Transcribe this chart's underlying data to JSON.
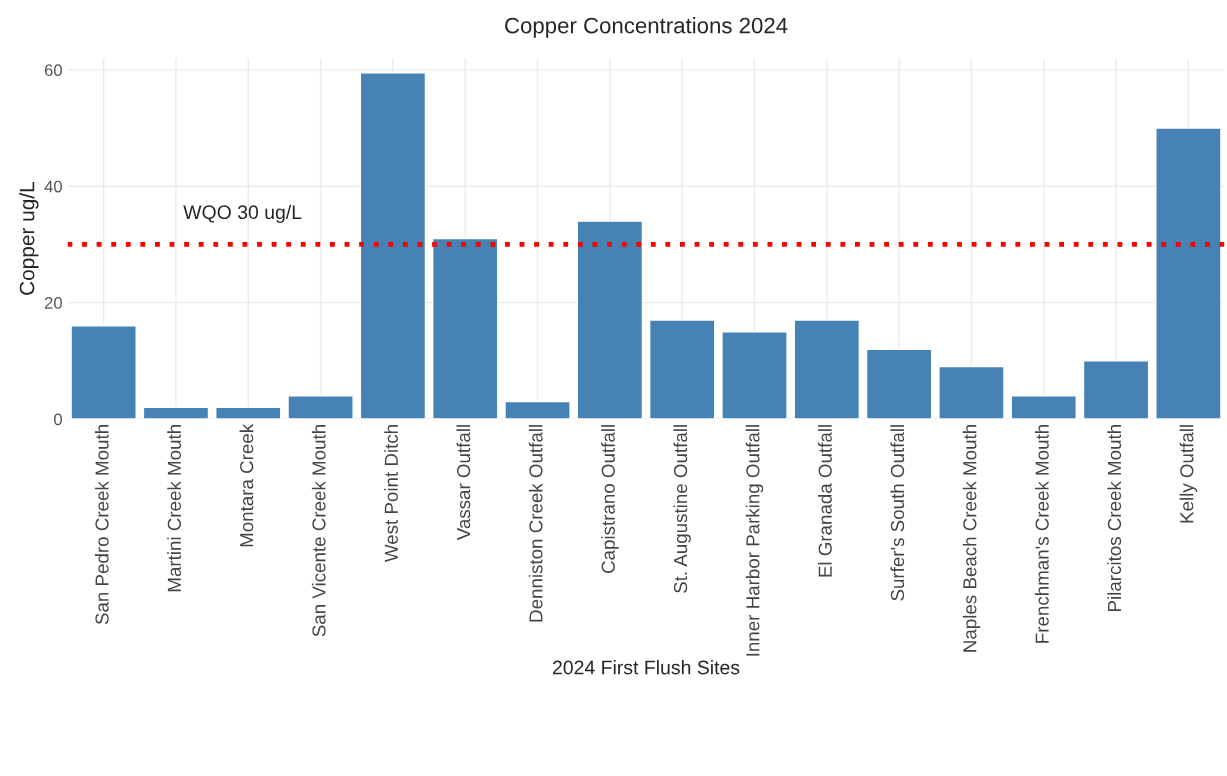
{
  "chart_data": {
    "type": "bar",
    "title": "Copper Concentrations 2024",
    "xlabel": "2024 First Flush Sites",
    "ylabel": "Copper ug/L",
    "categories": [
      "San Pedro Creek Mouth",
      "Martini Creek Mouth",
      "Montara Creek",
      "San Vicente Creek Mouth",
      "West Point Ditch",
      "Vassar Outfall",
      "Denniston Creek Outfall",
      "Capistrano Outfall",
      "St. Augustine Outfall",
      "Inner Harbor Parking Outfall",
      "El Granada Outfall",
      "Surfer's South Outfall",
      "Naples Beach Creek Mouth",
      "Frenchman's Creek Mouth",
      "Pilarcitos Creek Mouth",
      "Kelly Outfall"
    ],
    "values": [
      16,
      2,
      2,
      4,
      59.5,
      31,
      3,
      34,
      17,
      15,
      17,
      12,
      9,
      4,
      10,
      50
    ],
    "color": "#4682b4",
    "ylim": [
      0,
      62
    ],
    "yticks": [
      0,
      20,
      40,
      60
    ],
    "grid": true,
    "ref_lines": [
      {
        "axis": "y",
        "value": 30,
        "label": "WQO 30 ug/L",
        "color": "#ff0000",
        "line_style": "dotted"
      }
    ]
  }
}
